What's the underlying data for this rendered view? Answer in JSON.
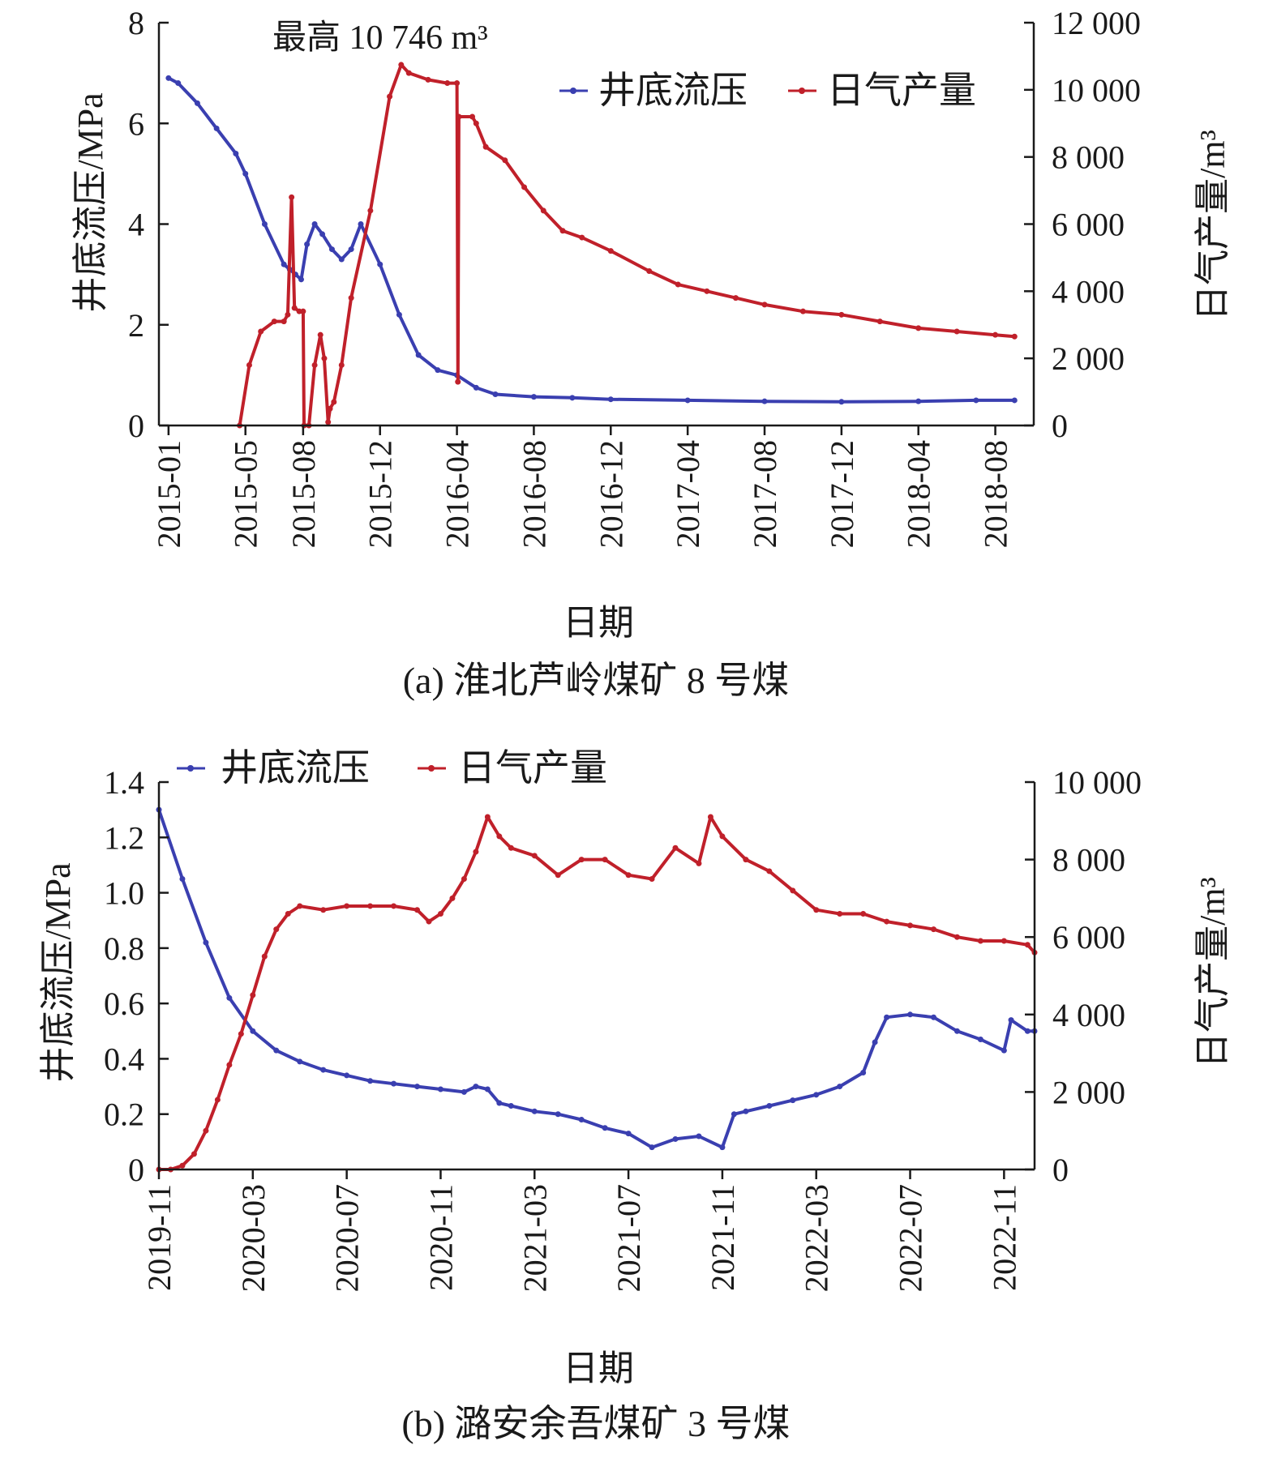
{
  "colors": {
    "pressure": "#3a3fb0",
    "gas": "#c0202a",
    "axis": "#1a1a1a"
  },
  "chart_data": [
    {
      "type": "line",
      "caption": "(a) 淮北芦岭煤矿 8 号煤",
      "xlabel": "日期",
      "ylabel_left": "井底流压/MPa",
      "ylabel_right": "日气产量/m³",
      "annotation": "最高 10 746 m³",
      "legend_position": "top-right",
      "x_ticks": [
        "2015-01",
        "2015-05",
        "2015-08",
        "2015-12",
        "2016-04",
        "2016-08",
        "2016-12",
        "2017-04",
        "2017-08",
        "2017-12",
        "2018-04",
        "2018-08"
      ],
      "x_tick_offsets": [
        0,
        4,
        7,
        11,
        15,
        19,
        23,
        27,
        31,
        35,
        39,
        43
      ],
      "x_range": [
        -0.5,
        45
      ],
      "y_left": {
        "range": [
          0,
          8
        ],
        "ticks": [
          "0",
          "2",
          "4",
          "6",
          "8"
        ],
        "tick_values": [
          0,
          2,
          4,
          6,
          8
        ]
      },
      "y_right": {
        "range": [
          0,
          12000
        ],
        "ticks": [
          "0",
          "2 000",
          "4 000",
          "6 000",
          "8 000",
          "10 000",
          "12 000"
        ],
        "tick_values": [
          0,
          2000,
          4000,
          6000,
          8000,
          10000,
          12000
        ]
      },
      "series": [
        {
          "name": "井底流压",
          "axis": "left",
          "color": "#3a3fb0",
          "x": [
            0,
            0.5,
            1.5,
            2.5,
            3.5,
            4,
            5,
            6,
            6.3,
            6.6,
            6.9,
            7.2,
            7.6,
            8,
            8.5,
            9,
            9.5,
            10,
            11,
            12,
            13,
            14,
            15,
            16,
            17,
            19,
            21,
            23,
            27,
            31,
            35,
            39,
            42,
            44
          ],
          "y": [
            6.9,
            6.8,
            6.4,
            5.9,
            5.4,
            5.0,
            4.0,
            3.2,
            3.1,
            3.0,
            2.9,
            3.6,
            4.0,
            3.8,
            3.5,
            3.3,
            3.5,
            4.0,
            3.2,
            2.2,
            1.4,
            1.1,
            1.0,
            0.75,
            0.62,
            0.57,
            0.55,
            0.52,
            0.5,
            0.48,
            0.47,
            0.48,
            0.5,
            0.5
          ]
        },
        {
          "name": "日气产量",
          "axis": "right",
          "color": "#c0202a",
          "x": [
            3.7,
            4.2,
            4.8,
            5.5,
            6.0,
            6.2,
            6.4,
            6.55,
            6.8,
            7.0,
            7.05,
            7.3,
            7.6,
            7.9,
            8.1,
            8.3,
            8.4,
            8.6,
            9.0,
            9.5,
            10.5,
            11.5,
            12.1,
            12.5,
            13.5,
            14.5,
            15.0,
            15.05,
            15.1,
            15.8,
            16.0,
            16.5,
            17.5,
            18.5,
            19.5,
            20.5,
            21.5,
            23,
            25,
            26.5,
            28,
            29.5,
            31,
            33,
            35,
            37,
            39,
            41,
            43,
            44
          ],
          "y": [
            0,
            1800,
            2800,
            3100,
            3100,
            3300,
            6800,
            3500,
            3400,
            3400,
            0,
            0,
            1800,
            2700,
            2000,
            100,
            500,
            700,
            1800,
            3800,
            6400,
            9800,
            10746,
            10500,
            10300,
            10200,
            10200,
            1300,
            9200,
            9200,
            9000,
            8300,
            7900,
            7100,
            6400,
            5800,
            5600,
            5200,
            4600,
            4200,
            4000,
            3800,
            3600,
            3400,
            3300,
            3100,
            2900,
            2800,
            2700,
            2650
          ]
        }
      ]
    },
    {
      "type": "line",
      "caption": "(b) 潞安余吾煤矿 3 号煤",
      "xlabel": "日期",
      "ylabel_left": "井底流压/MPa",
      "ylabel_right": "日气产量/m³",
      "legend_position": "top-left",
      "x_ticks": [
        "2019-11",
        "2020-03",
        "2020-07",
        "2020-11",
        "2021-03",
        "2021-07",
        "2021-11",
        "2022-03",
        "2022-07",
        "2022-11"
      ],
      "x_tick_offsets": [
        0,
        4,
        8,
        12,
        16,
        20,
        24,
        28,
        32,
        36
      ],
      "x_range": [
        0,
        37.3
      ],
      "y_left": {
        "range": [
          0,
          1.4
        ],
        "ticks": [
          "0",
          "0.2",
          "0.4",
          "0.6",
          "0.8",
          "1.0",
          "1.2",
          "1.4"
        ],
        "tick_values": [
          0,
          0.2,
          0.4,
          0.6,
          0.8,
          1.0,
          1.2,
          1.4
        ]
      },
      "y_right": {
        "range": [
          0,
          10000
        ],
        "ticks": [
          "0",
          "2 000",
          "4 000",
          "6 000",
          "8 000",
          "10 000"
        ],
        "tick_values": [
          0,
          2000,
          4000,
          6000,
          8000,
          10000
        ]
      },
      "series": [
        {
          "name": "井底流压",
          "axis": "left",
          "color": "#3a3fb0",
          "x": [
            0,
            1,
            2,
            3,
            4,
            5,
            6,
            7,
            8,
            9,
            10,
            11,
            12,
            13,
            13.5,
            14,
            14.5,
            15,
            16,
            17,
            18,
            19,
            20,
            21,
            22,
            23,
            24,
            24.5,
            25,
            26,
            27,
            28,
            29,
            30,
            30.5,
            31,
            32,
            33,
            34,
            35,
            36,
            36.3,
            37,
            37.3
          ],
          "y": [
            1.3,
            1.05,
            0.82,
            0.62,
            0.5,
            0.43,
            0.39,
            0.36,
            0.34,
            0.32,
            0.31,
            0.3,
            0.29,
            0.28,
            0.3,
            0.29,
            0.24,
            0.23,
            0.21,
            0.2,
            0.18,
            0.15,
            0.13,
            0.08,
            0.11,
            0.12,
            0.08,
            0.2,
            0.21,
            0.23,
            0.25,
            0.27,
            0.3,
            0.35,
            0.46,
            0.55,
            0.56,
            0.55,
            0.5,
            0.47,
            0.43,
            0.54,
            0.5,
            0.5
          ]
        },
        {
          "name": "日气产量",
          "axis": "right",
          "color": "#c0202a",
          "x": [
            0,
            0.5,
            1,
            1.5,
            2,
            2.5,
            3,
            3.5,
            4,
            4.5,
            5,
            5.5,
            6,
            7,
            8,
            9,
            10,
            11,
            11.5,
            12,
            12.5,
            13,
            13.5,
            14,
            14.5,
            15,
            16,
            17,
            18,
            19,
            20,
            21,
            22,
            23,
            23.5,
            24,
            25,
            26,
            27,
            28,
            29,
            30,
            31,
            32,
            33,
            34,
            35,
            36,
            37,
            37.3
          ],
          "y": [
            0,
            0,
            100,
            400,
            1000,
            1800,
            2700,
            3500,
            4500,
            5500,
            6200,
            6600,
            6800,
            6700,
            6800,
            6800,
            6800,
            6700,
            6400,
            6600,
            7000,
            7500,
            8200,
            9100,
            8600,
            8300,
            8100,
            7600,
            8000,
            8000,
            7600,
            7500,
            8300,
            7900,
            9100,
            8600,
            8000,
            7700,
            7200,
            6700,
            6600,
            6600,
            6400,
            6300,
            6200,
            6000,
            5900,
            5900,
            5800,
            5600
          ]
        }
      ]
    }
  ]
}
